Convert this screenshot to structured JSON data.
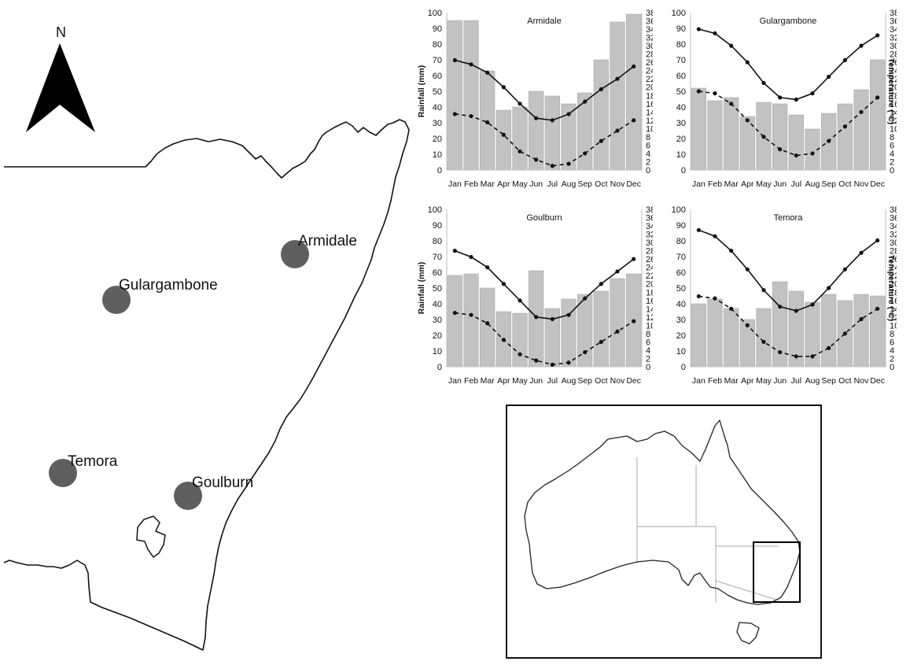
{
  "map": {
    "north_label": "N",
    "towns": [
      {
        "name": "Armidale",
        "key": "armidale"
      },
      {
        "name": "Gulargambone",
        "key": "gulargambone"
      },
      {
        "name": "Temora",
        "key": "temora"
      },
      {
        "name": "Goulburn",
        "key": "goulburn"
      }
    ],
    "marker_color": "#5f5f5f"
  },
  "colors": {
    "bar": "#c2c2c2",
    "bar_edge": "#a9a9a9",
    "line": "#111111"
  },
  "chart_data": [
    {
      "type": "bar",
      "title": "Armidale",
      "categories": [
        "Jan",
        "Feb",
        "Mar",
        "Apr",
        "May",
        "Jun",
        "Jul",
        "Aug",
        "Sep",
        "Oct",
        "Nov",
        "Dec"
      ],
      "ylabel": "Rainfall (mm)",
      "y2label": "",
      "ylim": [
        0,
        100
      ],
      "y2lim": [
        0,
        38
      ],
      "series": [
        {
          "kind": "bar",
          "axis": "left",
          "values": [
            95,
            95,
            63,
            38,
            40,
            50,
            47,
            42,
            49,
            70,
            94,
            99
          ]
        },
        {
          "kind": "line",
          "style": "solid",
          "axis": "right",
          "values": [
            26.5,
            25.5,
            23.5,
            20,
            16,
            12.5,
            12,
            13.5,
            16.5,
            19.5,
            22,
            25
          ]
        },
        {
          "kind": "line",
          "style": "dashed",
          "axis": "right",
          "values": [
            13.5,
            13,
            11.5,
            8.5,
            4.5,
            2.5,
            1,
            1.5,
            4,
            7,
            9.5,
            12
          ]
        }
      ]
    },
    {
      "type": "bar",
      "title": "Gulargambone",
      "categories": [
        "Jan",
        "Feb",
        "Mar",
        "Apr",
        "May",
        "Jun",
        "Jul",
        "Aug",
        "Sep",
        "Oct",
        "Nov",
        "Dec"
      ],
      "ylabel": "",
      "y2label": "Temperature (°C)",
      "ylim": [
        0,
        100
      ],
      "y2lim": [
        0,
        38
      ],
      "series": [
        {
          "kind": "bar",
          "axis": "left",
          "values": [
            52,
            44,
            46,
            34,
            43,
            42,
            35,
            26,
            36,
            42,
            51,
            70
          ]
        },
        {
          "kind": "line",
          "style": "solid",
          "axis": "right",
          "values": [
            34,
            33,
            30,
            26,
            21,
            17.5,
            17,
            18.5,
            22.5,
            26.5,
            30,
            32.5
          ]
        },
        {
          "kind": "line",
          "style": "dashed",
          "axis": "right",
          "values": [
            19,
            18.5,
            16,
            12,
            8,
            5,
            3.5,
            4,
            7,
            10.5,
            14,
            17.5
          ]
        }
      ]
    },
    {
      "type": "bar",
      "title": "Goulburn",
      "categories": [
        "Jan",
        "Feb",
        "Mar",
        "Apr",
        "May",
        "Jun",
        "Jul",
        "Aug",
        "Sep",
        "Oct",
        "Nov",
        "Dec"
      ],
      "ylabel": "Rainfall (mm)",
      "y2label": "",
      "ylim": [
        0,
        100
      ],
      "y2lim": [
        0,
        38
      ],
      "series": [
        {
          "kind": "bar",
          "axis": "left",
          "values": [
            58,
            59,
            50,
            35,
            34,
            61,
            37,
            43,
            46,
            48,
            56,
            59
          ]
        },
        {
          "kind": "line",
          "style": "solid",
          "axis": "right",
          "values": [
            28,
            26.5,
            24,
            20,
            16,
            12,
            11.5,
            12.5,
            16.5,
            20,
            23,
            26
          ]
        },
        {
          "kind": "line",
          "style": "dashed",
          "axis": "right",
          "values": [
            13,
            12.5,
            10.5,
            6.5,
            3,
            1.5,
            0.5,
            1,
            3.5,
            6,
            8.5,
            11
          ]
        }
      ]
    },
    {
      "type": "bar",
      "title": "Temora",
      "categories": [
        "Jan",
        "Feb",
        "Mar",
        "Apr",
        "May",
        "Jun",
        "Jul",
        "Aug",
        "Sep",
        "Oct",
        "Nov",
        "Dec"
      ],
      "ylabel": "",
      "y2label": "Temperature (°C)",
      "ylim": [
        0,
        100
      ],
      "y2lim": [
        0,
        38
      ],
      "series": [
        {
          "kind": "bar",
          "axis": "left",
          "values": [
            40,
            43,
            37,
            30,
            37,
            54,
            48,
            41,
            46,
            42,
            46,
            45
          ]
        },
        {
          "kind": "line",
          "style": "solid",
          "axis": "right",
          "values": [
            33,
            31.5,
            28,
            23.5,
            18.5,
            14.5,
            13.5,
            15,
            19,
            23.5,
            27.5,
            30.5
          ]
        },
        {
          "kind": "line",
          "style": "dashed",
          "axis": "right",
          "values": [
            17,
            16.5,
            14,
            10,
            6,
            3.5,
            2.5,
            2.5,
            4.5,
            8,
            11.5,
            14
          ]
        }
      ]
    }
  ]
}
